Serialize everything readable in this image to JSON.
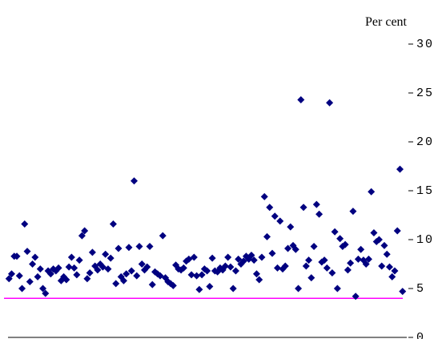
{
  "chart_data": {
    "type": "scatter",
    "y_axis_title": "Per cent",
    "color": "#000080",
    "ylim": [
      0,
      30
    ],
    "yticks": [
      0,
      5,
      10,
      15,
      20,
      25,
      30
    ],
    "reference_line": 4,
    "reference_color": "#ff00ff",
    "values": [
      6.0,
      6.5,
      8.3,
      8.3,
      6.3,
      5.0,
      11.6,
      8.8,
      5.7,
      7.5,
      8.2,
      6.2,
      7.0,
      5.0,
      4.5,
      6.8,
      6.5,
      7.0,
      6.8,
      7.1,
      5.8,
      6.2,
      5.9,
      7.2,
      8.2,
      7.1,
      6.4,
      7.9,
      10.4,
      10.9,
      6.0,
      6.6,
      8.7,
      7.3,
      6.9,
      7.5,
      7.2,
      8.5,
      7.0,
      8.1,
      11.6,
      5.5,
      9.1,
      6.2,
      5.8,
      6.5,
      9.2,
      6.8,
      16.0,
      6.3,
      9.3,
      7.5,
      6.9,
      7.2,
      9.3,
      5.4,
      6.7,
      6.5,
      6.3,
      10.4,
      6.1,
      5.7,
      5.5,
      5.3,
      7.4,
      7.0,
      6.9,
      7.1,
      7.8,
      8.0,
      6.4,
      8.2,
      6.3,
      4.9,
      6.4,
      7.0,
      6.8,
      5.2,
      8.1,
      6.8,
      6.7,
      7.1,
      6.9,
      7.3,
      8.2,
      7.2,
      5.0,
      6.8,
      8.0,
      7.5,
      7.8,
      8.3,
      8.0,
      8.4,
      7.9,
      6.5,
      5.9,
      8.2,
      14.4,
      10.3,
      13.3,
      8.6,
      12.4,
      7.1,
      11.9,
      7.0,
      7.3,
      9.1,
      11.3,
      9.4,
      9.0,
      5.0,
      24.3,
      13.3,
      7.3,
      7.9,
      6.1,
      9.3,
      13.6,
      12.6,
      7.7,
      7.9,
      7.1,
      24.0,
      6.6,
      10.8,
      5.0,
      10.1,
      9.3,
      9.5,
      6.9,
      7.6,
      12.9,
      4.2,
      8.0,
      9.0,
      7.9,
      7.5,
      8.0,
      14.9,
      10.7,
      9.8,
      10.0,
      7.3,
      9.4,
      8.5,
      7.2,
      6.2,
      6.8,
      10.9,
      17.2,
      4.7
    ]
  }
}
